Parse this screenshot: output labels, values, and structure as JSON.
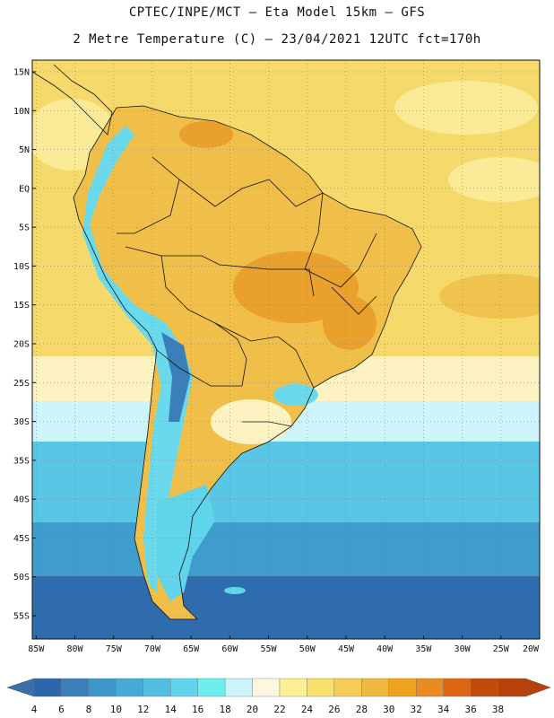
{
  "title_line1": "CPTEC/INPE/MCT –  Eta Model 15km – GFS",
  "title_line2": "2 Metre Temperature (C) – 23/04/2021 12UTC fct=170h",
  "lat_labels": [
    "15N",
    "10N",
    "5N",
    "EQ",
    "5S",
    "10S",
    "15S",
    "20S",
    "25S",
    "30S",
    "35S",
    "40S",
    "45S",
    "50S",
    "55S"
  ],
  "lat_values": [
    15,
    10,
    5,
    0,
    -5,
    -10,
    -15,
    -20,
    -25,
    -30,
    -35,
    -40,
    -45,
    -50,
    -55
  ],
  "lon_labels": [
    "85W",
    "80W",
    "75W",
    "70W",
    "65W",
    "60W",
    "55W",
    "50W",
    "45W",
    "40W",
    "35W",
    "30W",
    "25W",
    "20W"
  ],
  "lon_values": [
    -85,
    -80,
    -75,
    -70,
    -65,
    -60,
    -55,
    -50,
    -45,
    -40,
    -35,
    -30,
    -25,
    -20
  ],
  "map_extent": {
    "lon_min": -85.5,
    "lon_max": -20,
    "lat_min": -58,
    "lat_max": 16.5
  },
  "colorbar": {
    "levels": [
      "4",
      "6",
      "8",
      "10",
      "12",
      "14",
      "16",
      "18",
      "20",
      "22",
      "24",
      "26",
      "28",
      "30",
      "32",
      "34",
      "36",
      "38"
    ],
    "colors": [
      "#2e66aa",
      "#3b7fba",
      "#3f96c8",
      "#46aad6",
      "#52bedf",
      "#5fd4ea",
      "#6defef",
      "#cdf4fb",
      "#fdf6e0",
      "#fbf094",
      "#f9e06a",
      "#f5cc55",
      "#efb93f",
      "#eea21e",
      "#e98a22",
      "#de6612",
      "#c24a0b",
      "#b8410b"
    ],
    "left_end_color": "#3a6fae",
    "right_end_color": "#b8410b"
  },
  "field_colors": {
    "ocean_tropics": "#f5d96a",
    "ocean_tropics_light": "#fbeb98",
    "ocean_warm_deep": "#f0c34f",
    "ocean_sub_light": "#fdf2c2",
    "ocean_cool": "#58c6e4",
    "ocean_cold": "#3f9dcd",
    "ocean_coldest": "#2f6cad",
    "land_warm": "#efbf4a",
    "land_hot": "#e9a02c",
    "andes_cold": "#3b7fba",
    "andes_mid": "#6bd9ec",
    "patagonia": "#5fd4ea"
  }
}
